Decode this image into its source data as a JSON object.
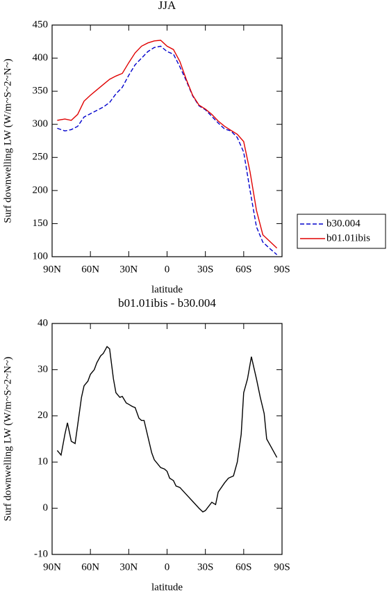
{
  "chart_data": [
    {
      "type": "line",
      "title": "JJA",
      "xlabel": "latitude",
      "ylabel": "Surf downwelling LW (W/m~S~2~N~)",
      "x": [
        86,
        80,
        75,
        70,
        65,
        60,
        55,
        50,
        45,
        40,
        35,
        30,
        25,
        20,
        15,
        10,
        5,
        0,
        -5,
        -10,
        -15,
        -20,
        -25,
        -30,
        -35,
        -40,
        -45,
        -50,
        -55,
        -60,
        -65,
        -70,
        -75,
        -80,
        -86
      ],
      "series": [
        {
          "name": "b30.004",
          "color": "#0000cc",
          "linestyle": "dashed",
          "values": [
            294,
            290,
            292,
            297,
            311,
            316,
            321,
            326,
            333,
            346,
            356,
            374,
            390,
            400,
            410,
            416,
            418,
            410,
            406,
            387,
            366,
            343,
            328,
            322,
            312,
            302,
            293,
            290,
            280,
            258,
            200,
            145,
            122,
            113,
            103
          ]
        },
        {
          "name": "b01.01ibis",
          "color": "#e00000",
          "linestyle": "solid",
          "values": [
            306,
            308,
            306,
            315,
            335,
            344,
            352,
            360,
            368,
            373,
            377,
            393,
            408,
            418,
            423,
            426,
            427,
            418,
            413,
            395,
            368,
            344,
            329,
            323,
            315,
            305,
            297,
            291,
            285,
            274,
            228,
            170,
            133,
            124,
            113
          ]
        }
      ],
      "xlim": [
        90,
        -90
      ],
      "xticks": [
        {
          "value": 90,
          "label": "90N"
        },
        {
          "value": 60,
          "label": "60N"
        },
        {
          "value": 30,
          "label": "30N"
        },
        0,
        {
          "value": -30,
          "label": "30S"
        },
        {
          "value": -60,
          "label": "60S"
        },
        {
          "value": -90,
          "label": "90S"
        }
      ],
      "ylim": [
        100,
        450
      ],
      "yticks": [
        100,
        150,
        200,
        250,
        300,
        350,
        400,
        450
      ],
      "legend": "right"
    },
    {
      "type": "line",
      "title": "b01.01ibis - b30.004",
      "xlabel": "latitude",
      "ylabel": "Surf downwelling LW (W/m~S~2~N~)",
      "x": [
        86,
        83,
        80,
        78,
        75,
        72,
        70,
        67,
        65,
        62,
        60,
        57,
        55,
        52,
        50,
        47,
        45,
        42,
        40,
        37,
        35,
        32,
        30,
        27,
        25,
        22,
        20,
        18,
        15,
        12,
        10,
        5,
        2,
        0,
        -2,
        -5,
        -7,
        -10,
        -15,
        -20,
        -25,
        -28,
        -30,
        -35,
        -38,
        -40,
        -45,
        -48,
        -52,
        -55,
        -58,
        -60,
        -63,
        -66,
        -70,
        -73,
        -76,
        -78,
        -82,
        -86
      ],
      "series": [
        {
          "color": "#000000",
          "linestyle": "solid",
          "values": [
            12.5,
            11.5,
            16,
            18.5,
            14.5,
            14,
            18,
            24,
            26.5,
            27.5,
            29,
            30,
            31.5,
            33,
            33.5,
            35,
            34.5,
            28,
            25,
            24,
            24.2,
            22.8,
            22.5,
            22,
            21.8,
            19.5,
            19,
            19,
            15.5,
            12,
            10.5,
            8.8,
            8.5,
            8,
            6.5,
            6,
            4.8,
            4.5,
            3,
            1.5,
            0,
            -0.8,
            -0.5,
            1.3,
            0.8,
            3.5,
            5.5,
            6.5,
            7,
            10,
            16,
            25,
            28,
            32.8,
            28,
            24,
            20.5,
            15,
            13,
            11
          ]
        }
      ],
      "xlim": [
        90,
        -90
      ],
      "xticks": [
        {
          "value": 90,
          "label": "90N"
        },
        {
          "value": 60,
          "label": "60N"
        },
        {
          "value": 30,
          "label": "30N"
        },
        0,
        {
          "value": -30,
          "label": "30S"
        },
        {
          "value": -60,
          "label": "60S"
        },
        {
          "value": -90,
          "label": "90S"
        }
      ],
      "ylim": [
        -10,
        40
      ],
      "yticks": [
        -10,
        0,
        10,
        20,
        30,
        40
      ]
    }
  ]
}
